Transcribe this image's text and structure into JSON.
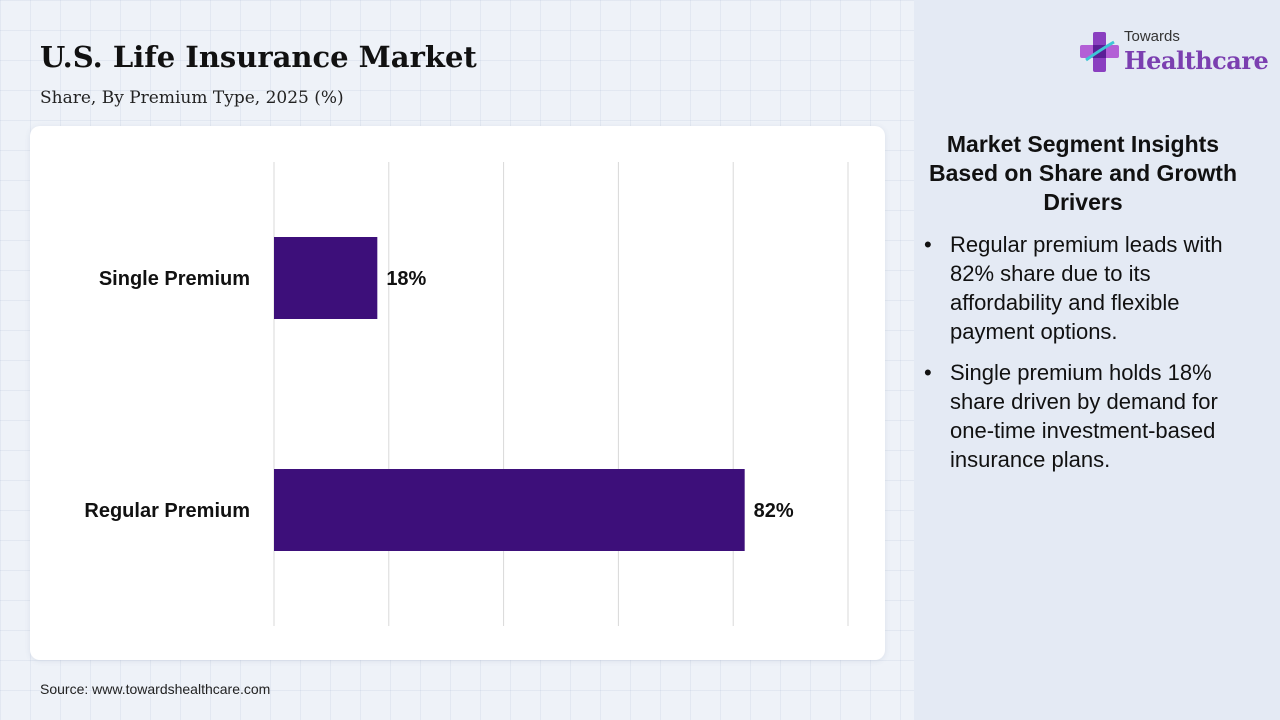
{
  "header": {
    "title": "U.S. Life Insurance Market",
    "subtitle": "Share, By Premium Type, 2025 (%)"
  },
  "chart_data": {
    "type": "bar",
    "orientation": "horizontal",
    "categories": [
      "Single Premium",
      "Regular Premium"
    ],
    "values": [
      18,
      82
    ],
    "value_labels": [
      "18%",
      "82%"
    ],
    "xlim": [
      0,
      100
    ],
    "grid": true,
    "bar_color": "#3d0f7a"
  },
  "insights": {
    "heading": "Market Segment Insights Based on Share and Growth Drivers",
    "bullets": [
      "Regular premium leads with 82% share due to its affordability and flexible payment options.",
      "Single premium holds 18% share driven by demand for one-time investment-based insurance plans."
    ]
  },
  "logo": {
    "top_text": "Towards",
    "main_text": "Healthcare"
  },
  "footer": {
    "source": "Source: www.towardshealthcare.com"
  }
}
